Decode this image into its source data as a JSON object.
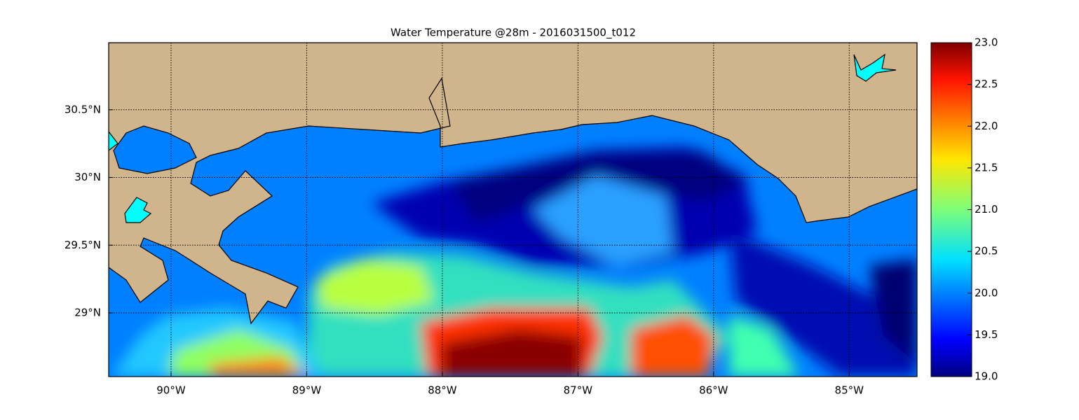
{
  "title": "Water Temperature @28m - 2016031500_t012",
  "map": {
    "xlim": [
      -90.46,
      -84.5
    ],
    "ylim": [
      28.53,
      30.995
    ],
    "xticks": [
      {
        "value": -90,
        "label": "90°W"
      },
      {
        "value": -89,
        "label": "89°W"
      },
      {
        "value": -88,
        "label": "88°W"
      },
      {
        "value": -87,
        "label": "87°W"
      },
      {
        "value": -86,
        "label": "86°W"
      },
      {
        "value": -85,
        "label": "85°W"
      }
    ],
    "yticks": [
      {
        "value": 29,
        "label": "29°N"
      },
      {
        "value": 29.5,
        "label": "29.5°N"
      },
      {
        "value": 30,
        "label": "30°N"
      },
      {
        "value": 30.5,
        "label": "30.5°N"
      }
    ],
    "grid": true
  },
  "colorbar": {
    "lim": [
      19,
      23
    ],
    "ticks": [
      {
        "value": 19,
        "label": "19.0"
      },
      {
        "value": 19.5,
        "label": "19.5"
      },
      {
        "value": 20,
        "label": "20.0"
      },
      {
        "value": 20.5,
        "label": "20.5"
      },
      {
        "value": 21,
        "label": "21.0"
      },
      {
        "value": 21.5,
        "label": "21.5"
      },
      {
        "value": 22,
        "label": "22.0"
      },
      {
        "value": 22.5,
        "label": "22.5"
      },
      {
        "value": 23,
        "label": "23.0"
      }
    ]
  }
}
